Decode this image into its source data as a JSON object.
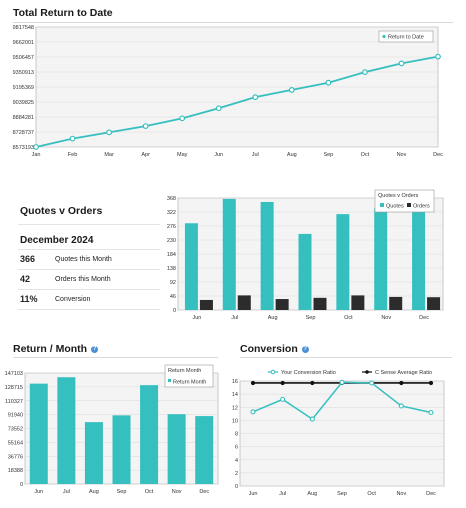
{
  "colors": {
    "teal": "#36bfbf",
    "dark": "#2c2c2c",
    "grid": "#d9d9d9",
    "panel": "#f4f4f4"
  },
  "total_return": {
    "title": "Total Return to Date",
    "legend": "Return to Date",
    "yticks": [
      "9817548",
      "9662001",
      "9506457",
      "9350913",
      "9195369",
      "9039825",
      "8884281",
      "8728737",
      "8573193"
    ]
  },
  "quotes_orders": {
    "title": "Quotes v Orders",
    "period": "December 2024",
    "stats": [
      {
        "value": "366",
        "label": "Quotes this Month"
      },
      {
        "value": "42",
        "label": "Orders this Month"
      },
      {
        "value": "11%",
        "label": "Conversion"
      }
    ],
    "legend_title": "Quotes v Orders",
    "legend_items": [
      "Quotes",
      "Orders"
    ],
    "yticks": [
      "368",
      "322",
      "276",
      "230",
      "184",
      "138",
      "92",
      "46",
      "0"
    ]
  },
  "return_month": {
    "title": "Return / Month",
    "legend_title": "Return Month",
    "legend_item": "Return Month",
    "yticks": [
      "147103",
      "128715",
      "110327",
      "91940",
      "73552",
      "55164",
      "36776",
      "18388",
      "0"
    ]
  },
  "conversion": {
    "title": "Conversion",
    "legend_items": [
      "Your Conversion Ratio",
      "C Sense Average Ratio"
    ],
    "yticks": [
      "16",
      "14",
      "12",
      "10",
      "8",
      "6",
      "4",
      "2",
      "0"
    ]
  },
  "chart_data": [
    {
      "type": "line",
      "title": "Total Return to Date",
      "categories": [
        "Jan",
        "Feb",
        "Mar",
        "Apr",
        "May",
        "Jun",
        "Jul",
        "Aug",
        "Sep",
        "Oct",
        "Nov",
        "Dec"
      ],
      "series": [
        {
          "name": "Return to Date",
          "values": [
            8573193,
            8660000,
            8725000,
            8790000,
            8870000,
            8975000,
            9090000,
            9165000,
            9240000,
            9350000,
            9440000,
            9510000
          ]
        }
      ],
      "ylim": [
        8573193,
        9817548
      ],
      "grid": true,
      "legend": "top-right"
    },
    {
      "type": "bar",
      "title": "Quotes v Orders",
      "categories": [
        "Jun",
        "Jul",
        "Aug",
        "Sep",
        "Oct",
        "Nov",
        "Dec"
      ],
      "series": [
        {
          "name": "Quotes",
          "values": [
            285,
            365,
            355,
            250,
            315,
            335,
            366
          ]
        },
        {
          "name": "Orders",
          "values": [
            33,
            48,
            36,
            40,
            48,
            43,
            42
          ]
        }
      ],
      "ylim": [
        0,
        368
      ],
      "grid": true,
      "legend": "top-right"
    },
    {
      "type": "bar",
      "title": "Return / Month",
      "categories": [
        "Jun",
        "Jul",
        "Aug",
        "Sep",
        "Oct",
        "Nov",
        "Dec"
      ],
      "series": [
        {
          "name": "Return Month",
          "values": [
            133000,
            141500,
            82000,
            91000,
            131000,
            92500,
            90000
          ]
        }
      ],
      "ylim": [
        0,
        147103
      ],
      "grid": true,
      "legend": "top-right"
    },
    {
      "type": "line",
      "title": "Conversion",
      "categories": [
        "Jun",
        "Jul",
        "Aug",
        "Sep",
        "Oct",
        "Nov",
        "Dec"
      ],
      "series": [
        {
          "name": "Your Conversion Ratio",
          "values": [
            11.3,
            13.2,
            10.2,
            15.8,
            15.7,
            12.2,
            11.2
          ]
        },
        {
          "name": "C Sense Average Ratio",
          "values": [
            15.7,
            15.7,
            15.7,
            15.7,
            15.7,
            15.7,
            15.7
          ]
        }
      ],
      "ylim": [
        0,
        16
      ],
      "grid": true,
      "legend": "top"
    }
  ]
}
